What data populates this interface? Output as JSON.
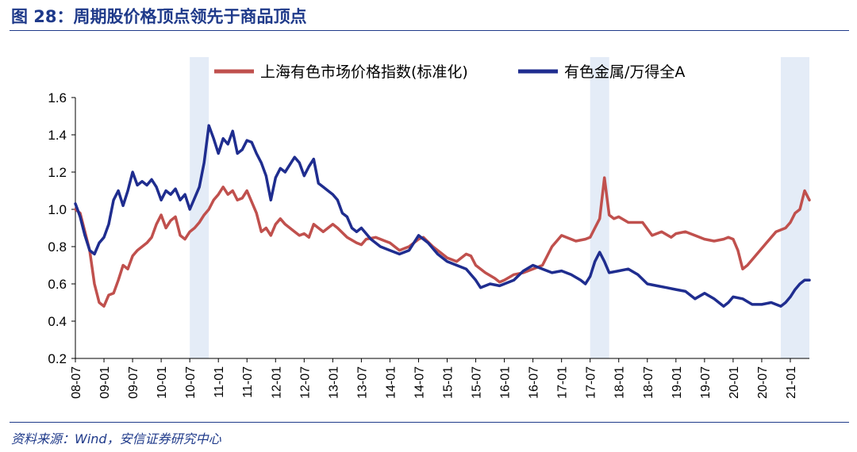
{
  "figure": {
    "title": "图 28：周期股价格顶点领先于商品顶点",
    "source": "资料来源：Wind，安信证券研究中心"
  },
  "chart_data": {
    "type": "line",
    "title": "周期股价格顶点领先于商品顶点",
    "xlabel": "",
    "ylabel": "",
    "ylim": [
      0.2,
      1.6
    ],
    "yticks": [
      "0.2",
      "0.4",
      "0.6",
      "0.8",
      "1.0",
      "1.2",
      "1.4",
      "1.6"
    ],
    "x_tick_labels": [
      "08-07",
      "09-01",
      "09-07",
      "10-01",
      "10-07",
      "11-01",
      "11-07",
      "12-01",
      "12-07",
      "13-01",
      "13-07",
      "14-01",
      "14-07",
      "15-01",
      "15-07",
      "16-01",
      "16-07",
      "17-01",
      "17-07",
      "18-01",
      "18-07",
      "19-01",
      "19-07",
      "20-01",
      "20-07",
      "21-01"
    ],
    "grid": false,
    "legend_position": "top-center",
    "shaded_periods": [
      [
        "2010-07",
        "2010-11"
      ],
      [
        "2017-07",
        "2017-11"
      ],
      [
        "2020-11",
        "2021-05"
      ]
    ],
    "series": [
      {
        "name": "上海有色市场价格指数(标准化)",
        "color": "#c0504d",
        "points": [
          [
            "2008-07",
            1.0
          ],
          [
            "2008-08",
            0.98
          ],
          [
            "2008-10",
            0.78
          ],
          [
            "2008-11",
            0.6
          ],
          [
            "2008-12",
            0.5
          ],
          [
            "2009-01",
            0.48
          ],
          [
            "2009-02",
            0.54
          ],
          [
            "2009-03",
            0.55
          ],
          [
            "2009-04",
            0.62
          ],
          [
            "2009-05",
            0.7
          ],
          [
            "2009-06",
            0.68
          ],
          [
            "2009-07",
            0.75
          ],
          [
            "2009-08",
            0.78
          ],
          [
            "2009-09",
            0.8
          ],
          [
            "2009-10",
            0.82
          ],
          [
            "2009-11",
            0.85
          ],
          [
            "2009-12",
            0.92
          ],
          [
            "2010-01",
            0.97
          ],
          [
            "2010-02",
            0.9
          ],
          [
            "2010-03",
            0.94
          ],
          [
            "2010-04",
            0.96
          ],
          [
            "2010-05",
            0.86
          ],
          [
            "2010-06",
            0.84
          ],
          [
            "2010-07",
            0.88
          ],
          [
            "2010-08",
            0.9
          ],
          [
            "2010-09",
            0.93
          ],
          [
            "2010-10",
            0.97
          ],
          [
            "2010-11",
            1.0
          ],
          [
            "2010-12",
            1.05
          ],
          [
            "2011-01",
            1.08
          ],
          [
            "2011-02",
            1.12
          ],
          [
            "2011-03",
            1.08
          ],
          [
            "2011-04",
            1.1
          ],
          [
            "2011-05",
            1.05
          ],
          [
            "2011-06",
            1.06
          ],
          [
            "2011-07",
            1.1
          ],
          [
            "2011-08",
            1.04
          ],
          [
            "2011-09",
            0.98
          ],
          [
            "2011-10",
            0.88
          ],
          [
            "2011-11",
            0.9
          ],
          [
            "2011-12",
            0.86
          ],
          [
            "2012-01",
            0.92
          ],
          [
            "2012-02",
            0.95
          ],
          [
            "2012-03",
            0.92
          ],
          [
            "2012-04",
            0.9
          ],
          [
            "2012-05",
            0.88
          ],
          [
            "2012-06",
            0.86
          ],
          [
            "2012-07",
            0.87
          ],
          [
            "2012-08",
            0.85
          ],
          [
            "2012-09",
            0.92
          ],
          [
            "2012-10",
            0.9
          ],
          [
            "2012-11",
            0.88
          ],
          [
            "2013-01",
            0.92
          ],
          [
            "2013-02",
            0.9
          ],
          [
            "2013-04",
            0.85
          ],
          [
            "2013-06",
            0.82
          ],
          [
            "2013-07",
            0.81
          ],
          [
            "2013-08",
            0.84
          ],
          [
            "2013-10",
            0.85
          ],
          [
            "2013-12",
            0.83
          ],
          [
            "2014-01",
            0.82
          ],
          [
            "2014-03",
            0.78
          ],
          [
            "2014-05",
            0.8
          ],
          [
            "2014-07",
            0.84
          ],
          [
            "2014-08",
            0.85
          ],
          [
            "2014-10",
            0.8
          ],
          [
            "2014-12",
            0.76
          ],
          [
            "2015-01",
            0.74
          ],
          [
            "2015-03",
            0.72
          ],
          [
            "2015-05",
            0.76
          ],
          [
            "2015-06",
            0.75
          ],
          [
            "2015-07",
            0.7
          ],
          [
            "2015-09",
            0.66
          ],
          [
            "2015-11",
            0.63
          ],
          [
            "2015-12",
            0.61
          ],
          [
            "2016-01",
            0.62
          ],
          [
            "2016-03",
            0.65
          ],
          [
            "2016-05",
            0.66
          ],
          [
            "2016-07",
            0.68
          ],
          [
            "2016-09",
            0.7
          ],
          [
            "2016-11",
            0.8
          ],
          [
            "2017-01",
            0.86
          ],
          [
            "2017-02",
            0.85
          ],
          [
            "2017-04",
            0.83
          ],
          [
            "2017-06",
            0.84
          ],
          [
            "2017-07",
            0.85
          ],
          [
            "2017-08",
            0.9
          ],
          [
            "2017-09",
            0.95
          ],
          [
            "2017-10",
            1.17
          ],
          [
            "2017-11",
            0.97
          ],
          [
            "2017-12",
            0.95
          ],
          [
            "2018-01",
            0.96
          ],
          [
            "2018-03",
            0.93
          ],
          [
            "2018-06",
            0.93
          ],
          [
            "2018-08",
            0.86
          ],
          [
            "2018-10",
            0.88
          ],
          [
            "2018-12",
            0.85
          ],
          [
            "2019-01",
            0.87
          ],
          [
            "2019-03",
            0.88
          ],
          [
            "2019-05",
            0.86
          ],
          [
            "2019-07",
            0.84
          ],
          [
            "2019-09",
            0.83
          ],
          [
            "2019-11",
            0.84
          ],
          [
            "2019-12",
            0.85
          ],
          [
            "2020-01",
            0.84
          ],
          [
            "2020-02",
            0.78
          ],
          [
            "2020-03",
            0.68
          ],
          [
            "2020-04",
            0.7
          ],
          [
            "2020-06",
            0.76
          ],
          [
            "2020-08",
            0.82
          ],
          [
            "2020-10",
            0.88
          ],
          [
            "2020-12",
            0.9
          ],
          [
            "2021-01",
            0.93
          ],
          [
            "2021-02",
            0.98
          ],
          [
            "2021-03",
            1.0
          ],
          [
            "2021-04",
            1.1
          ],
          [
            "2021-05",
            1.05
          ]
        ]
      },
      {
        "name": "有色金属/万得全A",
        "color": "#1f2d8f",
        "points": [
          [
            "2008-07",
            1.03
          ],
          [
            "2008-08",
            0.96
          ],
          [
            "2008-09",
            0.86
          ],
          [
            "2008-10",
            0.78
          ],
          [
            "2008-11",
            0.76
          ],
          [
            "2008-12",
            0.82
          ],
          [
            "2009-01",
            0.85
          ],
          [
            "2009-02",
            0.92
          ],
          [
            "2009-03",
            1.05
          ],
          [
            "2009-04",
            1.1
          ],
          [
            "2009-05",
            1.02
          ],
          [
            "2009-06",
            1.1
          ],
          [
            "2009-07",
            1.2
          ],
          [
            "2009-08",
            1.13
          ],
          [
            "2009-09",
            1.15
          ],
          [
            "2009-10",
            1.13
          ],
          [
            "2009-11",
            1.16
          ],
          [
            "2009-12",
            1.12
          ],
          [
            "2010-01",
            1.05
          ],
          [
            "2010-02",
            1.1
          ],
          [
            "2010-03",
            1.08
          ],
          [
            "2010-04",
            1.11
          ],
          [
            "2010-05",
            1.05
          ],
          [
            "2010-06",
            1.08
          ],
          [
            "2010-07",
            1.0
          ],
          [
            "2010-08",
            1.06
          ],
          [
            "2010-09",
            1.12
          ],
          [
            "2010-10",
            1.25
          ],
          [
            "2010-11",
            1.45
          ],
          [
            "2010-12",
            1.38
          ],
          [
            "2011-01",
            1.3
          ],
          [
            "2011-02",
            1.38
          ],
          [
            "2011-03",
            1.35
          ],
          [
            "2011-04",
            1.42
          ],
          [
            "2011-05",
            1.3
          ],
          [
            "2011-06",
            1.32
          ],
          [
            "2011-07",
            1.37
          ],
          [
            "2011-08",
            1.36
          ],
          [
            "2011-09",
            1.3
          ],
          [
            "2011-10",
            1.25
          ],
          [
            "2011-11",
            1.18
          ],
          [
            "2011-12",
            1.05
          ],
          [
            "2012-01",
            1.17
          ],
          [
            "2012-02",
            1.22
          ],
          [
            "2012-03",
            1.2
          ],
          [
            "2012-04",
            1.24
          ],
          [
            "2012-05",
            1.28
          ],
          [
            "2012-06",
            1.25
          ],
          [
            "2012-07",
            1.18
          ],
          [
            "2012-08",
            1.23
          ],
          [
            "2012-09",
            1.27
          ],
          [
            "2012-10",
            1.14
          ],
          [
            "2012-11",
            1.12
          ],
          [
            "2012-12",
            1.1
          ],
          [
            "2013-01",
            1.08
          ],
          [
            "2013-02",
            1.05
          ],
          [
            "2013-03",
            0.98
          ],
          [
            "2013-04",
            0.96
          ],
          [
            "2013-05",
            0.9
          ],
          [
            "2013-06",
            0.88
          ],
          [
            "2013-07",
            0.9
          ],
          [
            "2013-09",
            0.84
          ],
          [
            "2013-11",
            0.8
          ],
          [
            "2014-01",
            0.78
          ],
          [
            "2014-03",
            0.76
          ],
          [
            "2014-05",
            0.78
          ],
          [
            "2014-06",
            0.82
          ],
          [
            "2014-07",
            0.86
          ],
          [
            "2014-09",
            0.82
          ],
          [
            "2014-11",
            0.76
          ],
          [
            "2015-01",
            0.72
          ],
          [
            "2015-03",
            0.7
          ],
          [
            "2015-05",
            0.68
          ],
          [
            "2015-07",
            0.62
          ],
          [
            "2015-08",
            0.58
          ],
          [
            "2015-10",
            0.6
          ],
          [
            "2015-12",
            0.59
          ],
          [
            "2016-01",
            0.6
          ],
          [
            "2016-03",
            0.62
          ],
          [
            "2016-05",
            0.67
          ],
          [
            "2016-07",
            0.7
          ],
          [
            "2016-09",
            0.68
          ],
          [
            "2016-11",
            0.66
          ],
          [
            "2017-01",
            0.67
          ],
          [
            "2017-03",
            0.65
          ],
          [
            "2017-05",
            0.62
          ],
          [
            "2017-06",
            0.6
          ],
          [
            "2017-07",
            0.64
          ],
          [
            "2017-08",
            0.72
          ],
          [
            "2017-09",
            0.77
          ],
          [
            "2017-10",
            0.72
          ],
          [
            "2017-11",
            0.66
          ],
          [
            "2018-01",
            0.67
          ],
          [
            "2018-03",
            0.68
          ],
          [
            "2018-05",
            0.65
          ],
          [
            "2018-07",
            0.6
          ],
          [
            "2018-09",
            0.59
          ],
          [
            "2018-11",
            0.58
          ],
          [
            "2019-01",
            0.57
          ],
          [
            "2019-03",
            0.56
          ],
          [
            "2019-05",
            0.52
          ],
          [
            "2019-07",
            0.55
          ],
          [
            "2019-09",
            0.52
          ],
          [
            "2019-11",
            0.48
          ],
          [
            "2019-12",
            0.5
          ],
          [
            "2020-01",
            0.53
          ],
          [
            "2020-03",
            0.52
          ],
          [
            "2020-05",
            0.49
          ],
          [
            "2020-07",
            0.49
          ],
          [
            "2020-09",
            0.5
          ],
          [
            "2020-11",
            0.48
          ],
          [
            "2020-12",
            0.5
          ],
          [
            "2021-01",
            0.53
          ],
          [
            "2021-02",
            0.57
          ],
          [
            "2021-03",
            0.6
          ],
          [
            "2021-04",
            0.62
          ],
          [
            "2021-05",
            0.62
          ]
        ]
      }
    ]
  }
}
